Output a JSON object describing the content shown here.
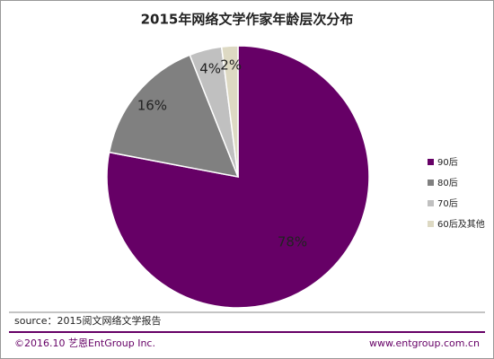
{
  "chart_data": {
    "type": "pie",
    "title": "2015年网络文学作家年龄层次分布",
    "categories": [
      "90后",
      "80后",
      "70后",
      "60后及其他"
    ],
    "values": [
      78,
      16,
      4,
      2
    ],
    "value_labels": [
      "78%",
      "16%",
      "4%",
      "2%"
    ],
    "colors": [
      "#660066",
      "#808080",
      "#c0c0c0",
      "#ddd9c3"
    ],
    "legend": "right"
  },
  "source": "source：2015阅文网络文学报告",
  "footer": {
    "left": "©2016.10  艺恩EntGroup Inc.",
    "right": "www.entgroup.com.cn"
  }
}
